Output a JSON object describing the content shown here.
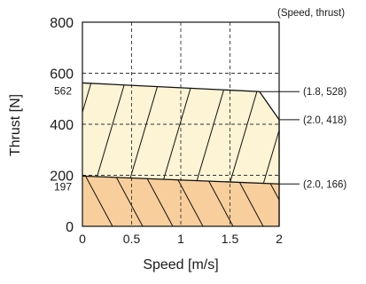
{
  "chart_data": {
    "type": "area",
    "title": "",
    "xlabel": "Speed [m/s]",
    "ylabel": "Thrust [N]",
    "xlim": [
      0,
      2
    ],
    "ylim": [
      0,
      800
    ],
    "x_ticks": [
      "0",
      "0.5",
      "1",
      "1.5",
      "2"
    ],
    "y_ticks": [
      "0",
      "200",
      "400",
      "600",
      "800"
    ],
    "extra_y_ticks": [
      "197",
      "562"
    ],
    "grid": true,
    "legend": "none",
    "legend_caption": "(Speed, thrust)",
    "series": [
      {
        "x": [
          0,
          2.0
        ],
        "y": [
          197,
          166
        ],
        "fill": "#f8cf9c"
      },
      {
        "x": [
          0,
          1.8,
          2.0
        ],
        "y": [
          562,
          528,
          418
        ],
        "fill": "#fdf4d5"
      }
    ],
    "annotations": [
      {
        "label": "(1.8, 528)",
        "x": 1.8,
        "y": 528
      },
      {
        "label": "(2.0, 418)",
        "x": 2.0,
        "y": 418
      },
      {
        "label": "(2.0, 166)",
        "x": 2.0,
        "y": 166
      }
    ]
  }
}
